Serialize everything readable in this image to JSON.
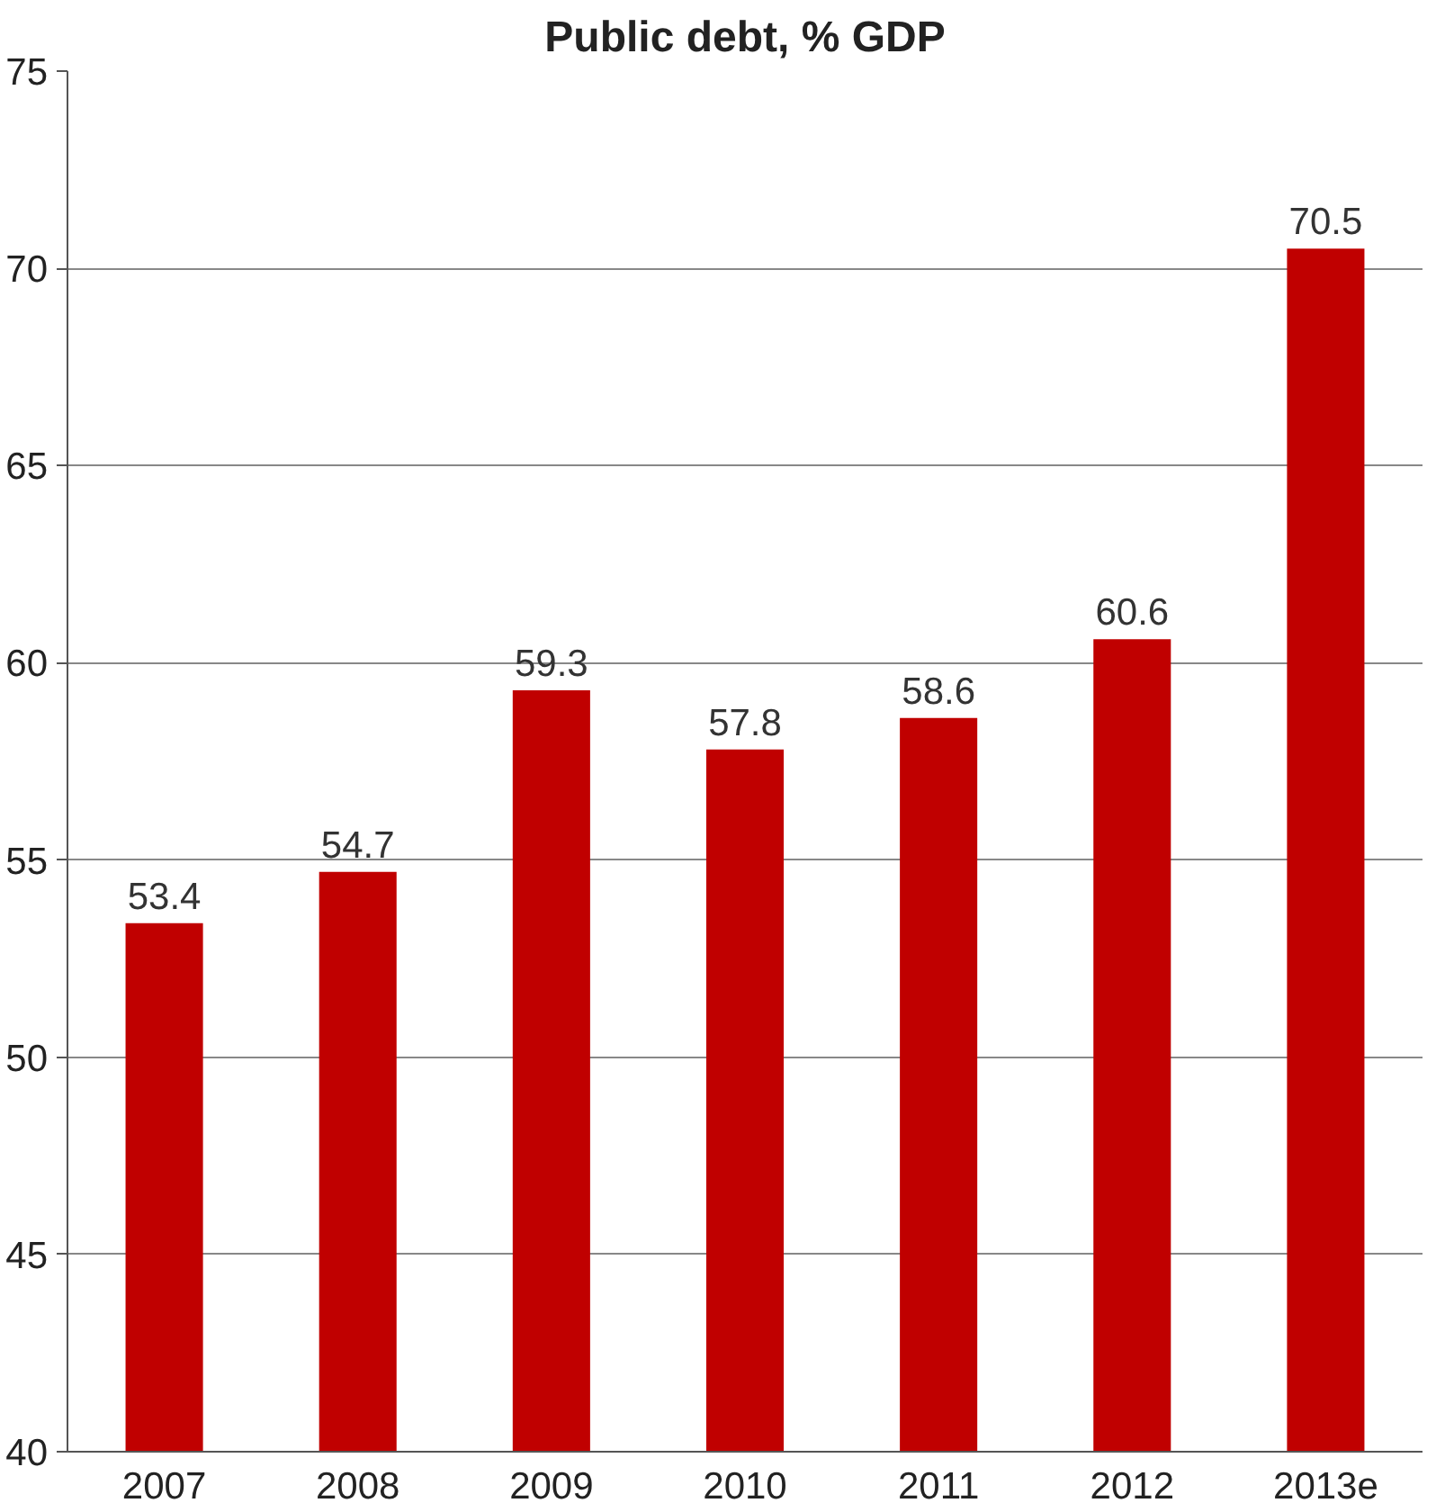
{
  "chart_data": {
    "type": "bar",
    "title": "Public debt, % GDP",
    "categories": [
      "2007",
      "2008",
      "2009",
      "2010",
      "2011",
      "2012",
      "2013e"
    ],
    "values": [
      53.4,
      54.7,
      59.3,
      57.8,
      58.6,
      60.6,
      70.5
    ],
    "color": "#c00000",
    "ylim": [
      40,
      75
    ],
    "yticks": [
      40,
      45,
      50,
      55,
      60,
      65,
      70,
      75
    ],
    "grid": "y",
    "data_labels": true
  }
}
